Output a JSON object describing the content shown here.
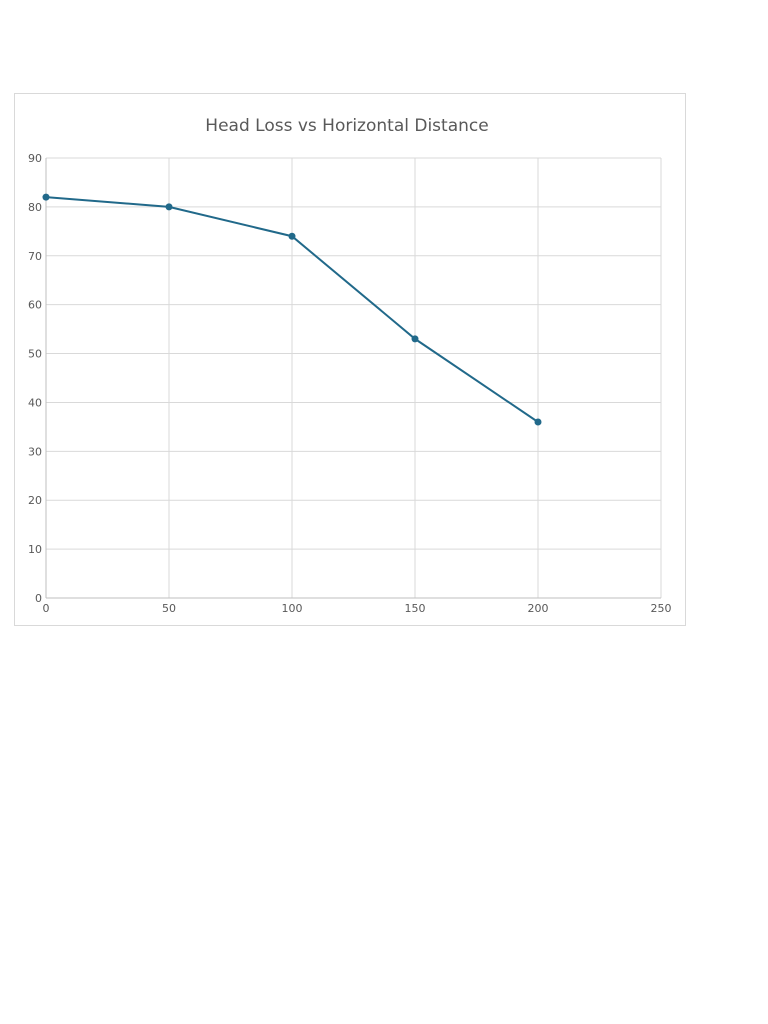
{
  "chart_data": {
    "type": "line",
    "title": "Head Loss vs Horizontal Distance",
    "xlabel": "",
    "ylabel": "",
    "xlim": [
      0,
      250
    ],
    "ylim": [
      0,
      90
    ],
    "x_ticks": [
      0,
      50,
      100,
      150,
      200,
      250
    ],
    "y_ticks": [
      0,
      10,
      20,
      30,
      40,
      50,
      60,
      70,
      80,
      90
    ],
    "grid": true,
    "legend": "none",
    "series": [
      {
        "x": [
          0,
          50,
          100,
          150,
          200
        ],
        "y": [
          82,
          80,
          74,
          53,
          36
        ],
        "color": "#21698a",
        "marker": "circle"
      }
    ]
  }
}
